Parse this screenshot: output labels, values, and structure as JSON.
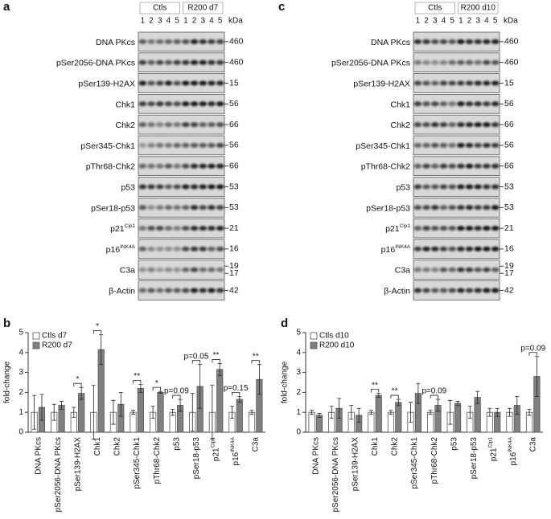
{
  "blots": [
    {
      "letter": "a",
      "groups": [
        "Ctls",
        "R200 d7"
      ],
      "lanes": [
        "1",
        "2",
        "3",
        "4",
        "5"
      ],
      "kda_header": "kDa",
      "rows": [
        {
          "name": "DNA PKcs",
          "kda": [
            "460"
          ]
        },
        {
          "name": "pSer2056-DNA PKcs",
          "kda": [
            "460"
          ]
        },
        {
          "name": "pSer139-H2AX",
          "kda": [
            "15"
          ]
        },
        {
          "name": "Chk1",
          "kda": [
            "56"
          ]
        },
        {
          "name": "Chk2",
          "kda": [
            "66"
          ]
        },
        {
          "name": "pSer345-Chk1",
          "kda": [
            "56"
          ]
        },
        {
          "name": "pThr68-Chk2",
          "kda": [
            "66"
          ]
        },
        {
          "name": "p53",
          "kda": [
            "53"
          ]
        },
        {
          "name": "pSer18-p53",
          "kda": [
            "53"
          ]
        },
        {
          "name": "p21",
          "sup": "Cip1",
          "kda": [
            "21"
          ]
        },
        {
          "name": "p16",
          "sup": "INK4A",
          "kda": [
            "16"
          ]
        },
        {
          "name": "C3a",
          "kda": [
            "19",
            "17"
          ]
        },
        {
          "name": "β-Actin",
          "kda": [
            "42"
          ]
        }
      ]
    },
    {
      "letter": "c",
      "groups": [
        "Ctls",
        "R200 d10"
      ],
      "lanes": [
        "1",
        "2",
        "3",
        "4",
        "5"
      ],
      "kda_header": "kDa",
      "rows": [
        {
          "name": "DNA PKcs",
          "kda": [
            "460"
          ]
        },
        {
          "name": "pSer2056-DNA PKcs",
          "kda": [
            "460"
          ]
        },
        {
          "name": "pSer139-H2AX",
          "kda": [
            "15"
          ]
        },
        {
          "name": "Chk1",
          "kda": [
            "56"
          ]
        },
        {
          "name": "Chk2",
          "kda": [
            "66"
          ]
        },
        {
          "name": "pSer345-Chk1",
          "kda": [
            "56"
          ]
        },
        {
          "name": "pThr68-Chk2",
          "kda": [
            "66"
          ]
        },
        {
          "name": "p53",
          "kda": [
            "53"
          ]
        },
        {
          "name": "pSer18-p53",
          "kda": [
            "53"
          ]
        },
        {
          "name": "p21",
          "sup": "Cip1",
          "kda": [
            "21"
          ]
        },
        {
          "name": "p16",
          "sup": "INK4A",
          "kda": [
            "16"
          ]
        },
        {
          "name": "C3a",
          "kda": [
            "19",
            "17"
          ]
        },
        {
          "name": "β-Actin",
          "kda": [
            "42"
          ]
        }
      ]
    }
  ],
  "chart_data": [
    {
      "type": "bar",
      "letter": "b",
      "ylabel": "fold-change",
      "categories": [
        "DNA PKcs",
        "pSer2056-DNA PKcs",
        "pSer139-H2AX",
        "Chk1",
        "Chk2",
        "pSer345-Chk1",
        "pThr68-Chk2",
        "p53",
        "pSer18-p53",
        "p21",
        "p16",
        "C3a"
      ],
      "category_superscripts": [
        null,
        null,
        null,
        null,
        null,
        null,
        null,
        null,
        null,
        "Cip1",
        "INK4A",
        null
      ],
      "series": [
        {
          "name": "Ctls d7",
          "color": "#ffffff",
          "values": [
            1,
            1,
            1,
            1,
            1,
            1,
            1,
            1,
            1,
            1,
            1,
            1
          ],
          "errors": [
            0.85,
            0.4,
            0.25,
            1.35,
            0.6,
            0.1,
            0.3,
            0.15,
            0.95,
            1.35,
            0.3,
            0.1
          ]
        },
        {
          "name": "R200 d7",
          "color": "#808080",
          "values": [
            1.25,
            1.35,
            1.95,
            4.15,
            1.4,
            2.2,
            2.0,
            1.35,
            2.3,
            3.15,
            1.65,
            2.65
          ],
          "errors": [
            0.65,
            0.2,
            0.3,
            0.75,
            0.6,
            0.2,
            0.05,
            0.3,
            1.1,
            0.3,
            0.15,
            0.75
          ]
        }
      ],
      "significance": [
        null,
        null,
        "*",
        "*",
        null,
        "**",
        "*",
        "p=0.09",
        "p=0.05",
        "**",
        "p=0.15",
        "**"
      ],
      "ylim": [
        0,
        5
      ],
      "yticks": [
        0,
        1,
        2,
        3,
        4,
        5
      ],
      "legend": "upper left"
    },
    {
      "type": "bar",
      "letter": "d",
      "ylabel": "fold-change",
      "categories": [
        "DNA PKcs",
        "pSer2056-DNA PKcs",
        "pSer139-H2AX",
        "Chk1",
        "Chk2",
        "pSer345-Chk1",
        "pThr68-Chk2",
        "p53",
        "pSer18-p53",
        "p21",
        "p16",
        "C3a"
      ],
      "category_superscripts": [
        null,
        null,
        null,
        null,
        null,
        null,
        null,
        null,
        null,
        "Cip1",
        "INK4A",
        null
      ],
      "series": [
        {
          "name": "Ctls d10",
          "color": "#ffffff",
          "values": [
            1,
            1,
            1,
            1,
            1,
            1,
            1,
            1,
            1,
            1,
            1,
            1
          ],
          "errors": [
            0.1,
            0.3,
            0.35,
            0.1,
            0.1,
            0.5,
            0.1,
            0.6,
            0.3,
            0.2,
            0.2,
            0.15
          ]
        },
        {
          "name": "R200 d10",
          "color": "#808080",
          "values": [
            0.85,
            1.2,
            0.85,
            1.85,
            1.5,
            1.95,
            1.35,
            1.45,
            1.75,
            1.0,
            1.35,
            2.8
          ],
          "errors": [
            0.1,
            0.5,
            0.35,
            0.1,
            0.15,
            0.5,
            0.3,
            0.1,
            0.3,
            0.2,
            0.45,
            1.0
          ]
        }
      ],
      "significance": [
        null,
        null,
        null,
        "**",
        "**",
        null,
        "p=0.09",
        null,
        null,
        null,
        null,
        "p=0.09"
      ],
      "ylim": [
        0,
        5
      ],
      "yticks": [
        0,
        1,
        2,
        3,
        4,
        5
      ],
      "legend": "upper left"
    }
  ]
}
